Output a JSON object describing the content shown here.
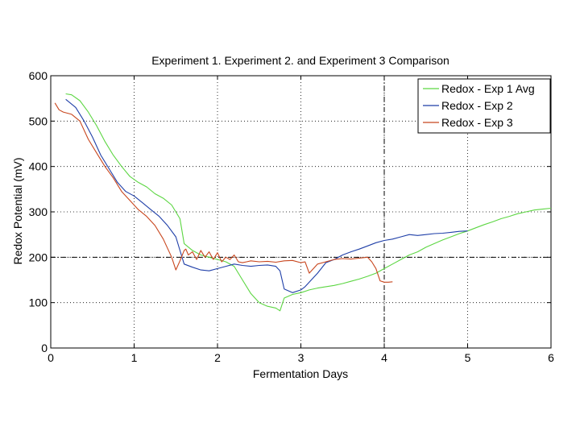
{
  "chart_data": {
    "type": "line",
    "title": "Experiment 1. Experiment 2. and Experiment 3 Comparison",
    "xlabel": "Fermentation Days",
    "ylabel": "Redox Potential (mV)",
    "xlim": [
      0,
      6
    ],
    "ylim": [
      0,
      600
    ],
    "xticks": [
      "0",
      "1",
      "2",
      "3",
      "4",
      "5",
      "6"
    ],
    "yticks": [
      "0",
      "100",
      "200",
      "300",
      "400",
      "500",
      "600"
    ],
    "grid": "dotted",
    "legend_position": "top-right",
    "reference_lines": [
      {
        "axis": "x",
        "value": 4,
        "style": "dash-dot"
      },
      {
        "axis": "y",
        "value": 200,
        "style": "dash-dot"
      }
    ],
    "series": [
      {
        "name": "Redox - Exp 1 Avg",
        "color": "#5cd642",
        "x": [
          0.18,
          0.25,
          0.35,
          0.45,
          0.55,
          0.65,
          0.75,
          0.85,
          0.95,
          1.05,
          1.15,
          1.25,
          1.35,
          1.45,
          1.55,
          1.6,
          1.7,
          1.8,
          1.9,
          2.0,
          2.1,
          2.2,
          2.3,
          2.4,
          2.5,
          2.6,
          2.7,
          2.75,
          2.8,
          2.9,
          3.0,
          3.1,
          3.2,
          3.3,
          3.4,
          3.5,
          3.6,
          3.7,
          3.8,
          3.9,
          4.0,
          4.1,
          4.2,
          4.3,
          4.4,
          4.5,
          4.6,
          4.7,
          4.8,
          4.9,
          5.0,
          5.1,
          5.2,
          5.3,
          5.4,
          5.5,
          5.6,
          5.7,
          5.8,
          5.9,
          6.0
        ],
        "y": [
          560,
          558,
          545,
          520,
          490,
          455,
          425,
          400,
          378,
          365,
          355,
          340,
          330,
          315,
          285,
          230,
          215,
          205,
          200,
          195,
          190,
          180,
          150,
          120,
          100,
          92,
          88,
          82,
          110,
          118,
          122,
          128,
          132,
          135,
          138,
          142,
          147,
          152,
          158,
          165,
          175,
          185,
          195,
          205,
          212,
          222,
          230,
          238,
          245,
          252,
          258,
          265,
          272,
          278,
          285,
          290,
          296,
          300,
          304,
          306,
          308
        ]
      },
      {
        "name": "Redox - Exp 2",
        "color": "#1f3fa8",
        "x": [
          0.18,
          0.3,
          0.4,
          0.5,
          0.6,
          0.7,
          0.8,
          0.9,
          1.0,
          1.1,
          1.2,
          1.3,
          1.4,
          1.5,
          1.55,
          1.6,
          1.7,
          1.8,
          1.9,
          2.0,
          2.1,
          2.2,
          2.3,
          2.4,
          2.5,
          2.6,
          2.7,
          2.75,
          2.8,
          2.9,
          3.0,
          3.05,
          3.1,
          3.2,
          3.3,
          3.4,
          3.5,
          3.6,
          3.7,
          3.8,
          3.9,
          4.0,
          4.1,
          4.2,
          4.3,
          4.4,
          4.5,
          4.6,
          4.7,
          4.8,
          4.9,
          5.0
        ],
        "y": [
          548,
          530,
          500,
          465,
          425,
          395,
          365,
          345,
          335,
          320,
          305,
          290,
          270,
          245,
          215,
          185,
          178,
          172,
          170,
          175,
          180,
          185,
          182,
          180,
          182,
          183,
          180,
          170,
          130,
          122,
          128,
          135,
          145,
          165,
          188,
          195,
          205,
          212,
          218,
          225,
          232,
          237,
          240,
          245,
          250,
          248,
          250,
          252,
          253,
          255,
          257,
          258
        ]
      },
      {
        "name": "Redox - Exp 3",
        "color": "#c8461e",
        "x": [
          0.05,
          0.1,
          0.15,
          0.25,
          0.35,
          0.45,
          0.55,
          0.65,
          0.75,
          0.85,
          0.95,
          1.05,
          1.15,
          1.25,
          1.35,
          1.45,
          1.5,
          1.55,
          1.6,
          1.62,
          1.65,
          1.7,
          1.75,
          1.8,
          1.85,
          1.9,
          1.95,
          2.0,
          2.05,
          2.1,
          2.15,
          2.2,
          2.25,
          2.3,
          2.35,
          2.4,
          2.5,
          2.6,
          2.7,
          2.8,
          2.9,
          3.0,
          3.05,
          3.1,
          3.2,
          3.3,
          3.4,
          3.5,
          3.6,
          3.7,
          3.8,
          3.85,
          3.9,
          3.95,
          4.0,
          4.05,
          4.1
        ],
        "y": [
          540,
          525,
          520,
          515,
          500,
          460,
          430,
          400,
          375,
          345,
          325,
          305,
          290,
          270,
          240,
          200,
          172,
          192,
          215,
          218,
          205,
          212,
          195,
          215,
          200,
          212,
          195,
          210,
          190,
          200,
          195,
          205,
          190,
          188,
          190,
          192,
          190,
          191,
          189,
          192,
          193,
          188,
          190,
          165,
          185,
          190,
          195,
          197,
          196,
          198,
          200,
          190,
          175,
          148,
          145,
          145,
          146
        ]
      }
    ]
  }
}
